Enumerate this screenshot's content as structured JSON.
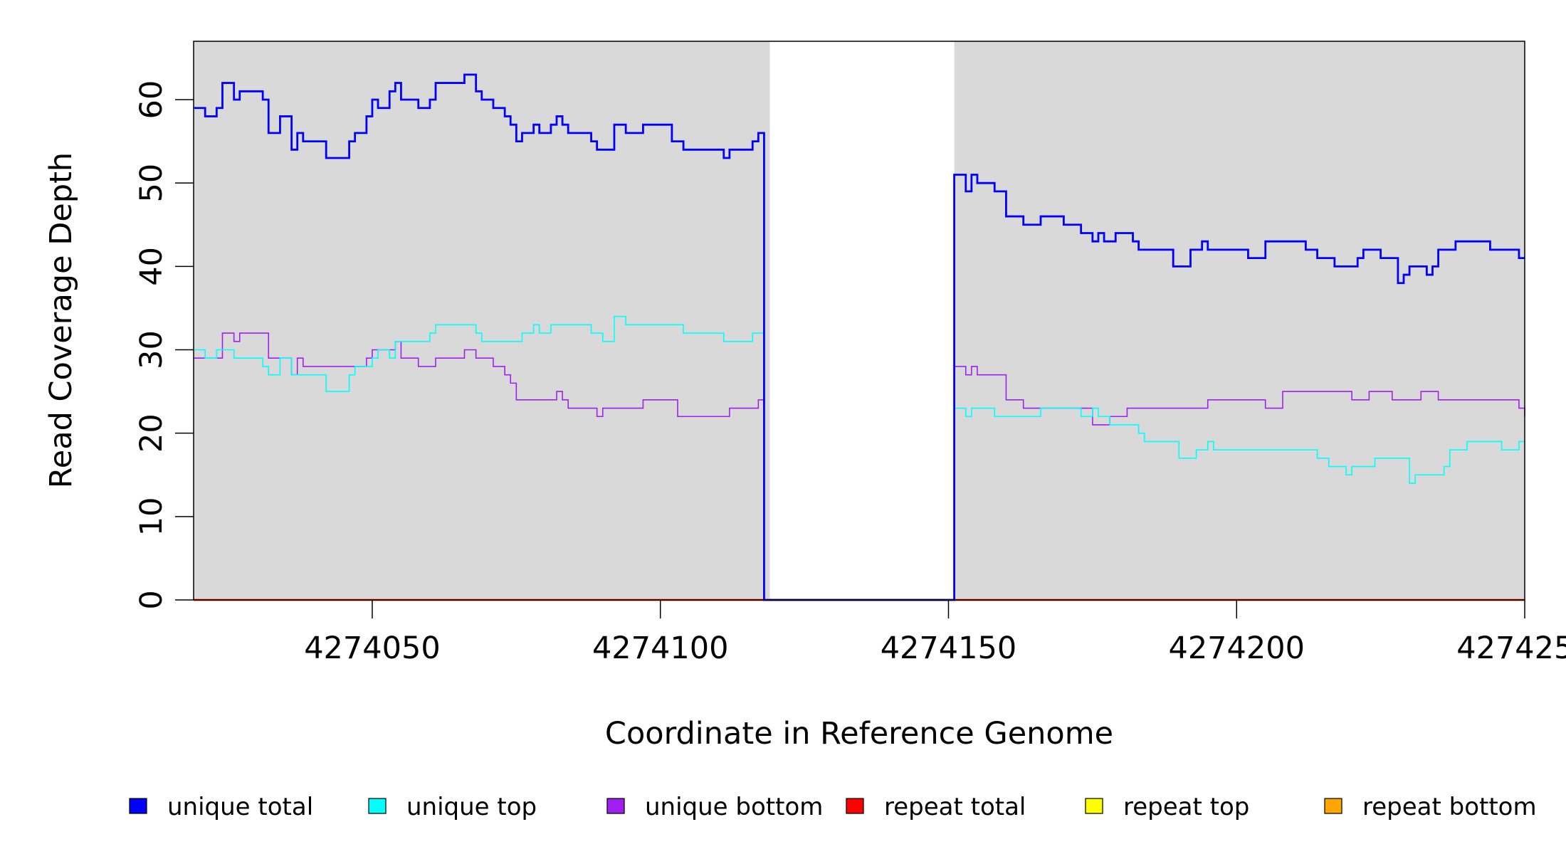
{
  "chart_data": {
    "type": "line",
    "xlabel": "Coordinate in Reference Genome",
    "ylabel": "Read Coverage Depth",
    "xlim": [
      4274019,
      4274250
    ],
    "ylim": [
      0,
      67
    ],
    "x_ticks": [
      4274050,
      4274100,
      4274150,
      4274200,
      4274250
    ],
    "x_tick_labels": [
      "4274050",
      "4274100",
      "4274150",
      "4274200",
      "4274250"
    ],
    "y_ticks": [
      0,
      10,
      20,
      30,
      40,
      50,
      60
    ],
    "y_tick_labels": [
      "0",
      "10",
      "20",
      "30",
      "40",
      "50",
      "60"
    ],
    "shaded_regions": [
      [
        4274019,
        4274119
      ],
      [
        4274151,
        4274250
      ]
    ],
    "shade_color": "#d9d9d9",
    "legend": {
      "position": "bottom",
      "entries": [
        {
          "label": "unique total",
          "color": "#0000ff"
        },
        {
          "label": "unique top",
          "color": "#00ffff"
        },
        {
          "label": "unique bottom",
          "color": "#a020f0"
        },
        {
          "label": "repeat total",
          "color": "#ff0000"
        },
        {
          "label": "repeat top",
          "color": "#ffff00"
        },
        {
          "label": "repeat bottom",
          "color": "#ffa500"
        }
      ]
    },
    "series": [
      {
        "name": "unique total",
        "color": "#0000ff",
        "x_start": 4274019,
        "step": 1,
        "values": [
          59,
          59,
          58,
          58,
          59,
          62,
          62,
          60,
          61,
          61,
          61,
          61,
          60,
          56,
          56,
          58,
          58,
          54,
          56,
          55,
          55,
          55,
          55,
          53,
          53,
          53,
          53,
          55,
          56,
          56,
          58,
          60,
          59,
          59,
          61,
          62,
          60,
          60,
          60,
          59,
          59,
          60,
          62,
          62,
          62,
          62,
          62,
          63,
          63,
          61,
          60,
          60,
          59,
          59,
          58,
          57,
          55,
          56,
          56,
          57,
          56,
          56,
          57,
          58,
          57,
          56,
          56,
          56,
          56,
          55,
          54,
          54,
          54,
          57,
          57,
          56,
          56,
          56,
          57,
          57,
          57,
          57,
          57,
          55,
          55,
          54,
          54,
          54,
          54,
          54,
          54,
          54,
          53,
          54,
          54,
          54,
          54,
          55,
          56,
          0,
          0,
          0,
          0,
          0,
          0,
          0,
          0,
          0,
          0,
          0,
          0,
          0,
          0,
          0,
          0,
          0,
          0,
          0,
          0,
          0,
          0,
          0,
          0,
          0,
          0,
          0,
          0,
          0,
          0,
          0,
          0,
          0,
          51,
          51,
          49,
          51,
          50,
          50,
          50,
          49,
          49,
          46,
          46,
          46,
          45,
          45,
          45,
          46,
          46,
          46,
          46,
          45,
          45,
          45,
          44,
          44,
          43,
          44,
          43,
          43,
          44,
          44,
          44,
          43,
          42,
          42,
          42,
          42,
          42,
          42,
          40,
          40,
          40,
          42,
          42,
          43,
          42,
          42,
          42,
          42,
          42,
          42,
          42,
          41,
          41,
          41,
          43,
          43,
          43,
          43,
          43,
          43,
          43,
          42,
          42,
          41,
          41,
          41,
          40,
          40,
          40,
          40,
          41,
          42,
          42,
          42,
          41,
          41,
          41,
          38,
          39,
          40,
          40,
          40,
          39,
          40,
          42,
          42,
          42,
          43,
          43,
          43,
          43,
          43,
          43,
          42,
          42,
          42,
          42,
          42,
          41
        ]
      },
      {
        "name": "unique top",
        "color": "#00ffff",
        "x_start": 4274019,
        "step": 1,
        "values": [
          30,
          30,
          29,
          29,
          30,
          30,
          30,
          29,
          29,
          29,
          29,
          29,
          28,
          27,
          27,
          29,
          29,
          27,
          27,
          27,
          27,
          27,
          27,
          25,
          25,
          25,
          25,
          27,
          28,
          28,
          28,
          29,
          30,
          30,
          29,
          31,
          31,
          31,
          31,
          31,
          31,
          32,
          33,
          33,
          33,
          33,
          33,
          33,
          33,
          32,
          31,
          31,
          31,
          31,
          31,
          31,
          31,
          32,
          32,
          33,
          32,
          32,
          33,
          33,
          33,
          33,
          33,
          33,
          33,
          32,
          32,
          31,
          31,
          34,
          34,
          33,
          33,
          33,
          33,
          33,
          33,
          33,
          33,
          33,
          33,
          32,
          32,
          32,
          32,
          32,
          32,
          32,
          31,
          31,
          31,
          31,
          31,
          32,
          32,
          0,
          0,
          0,
          0,
          0,
          0,
          0,
          0,
          0,
          0,
          0,
          0,
          0,
          0,
          0,
          0,
          0,
          0,
          0,
          0,
          0,
          0,
          0,
          0,
          0,
          0,
          0,
          0,
          0,
          0,
          0,
          0,
          0,
          23,
          23,
          22,
          23,
          23,
          23,
          23,
          22,
          22,
          22,
          22,
          22,
          22,
          22,
          22,
          23,
          23,
          23,
          23,
          23,
          23,
          23,
          22,
          22,
          23,
          22,
          22,
          21,
          21,
          21,
          21,
          21,
          20,
          19,
          19,
          19,
          19,
          19,
          19,
          17,
          17,
          17,
          18,
          18,
          19,
          18,
          18,
          18,
          18,
          18,
          18,
          18,
          18,
          18,
          18,
          18,
          18,
          18,
          18,
          18,
          18,
          18,
          18,
          17,
          17,
          16,
          16,
          16,
          15,
          16,
          16,
          16,
          16,
          17,
          17,
          17,
          17,
          17,
          17,
          14,
          15,
          15,
          15,
          15,
          15,
          16,
          18,
          18,
          18,
          19,
          19,
          19,
          19,
          19,
          19,
          18,
          18,
          18,
          19,
          19,
          19
        ]
      },
      {
        "name": "unique bottom",
        "color": "#a020f0",
        "x_start": 4274019,
        "step": 1,
        "values": [
          29,
          29,
          29,
          29,
          29,
          32,
          32,
          31,
          32,
          32,
          32,
          32,
          32,
          29,
          29,
          29,
          29,
          27,
          29,
          28,
          28,
          28,
          28,
          28,
          28,
          28,
          28,
          28,
          28,
          28,
          29,
          30,
          30,
          30,
          30,
          31,
          29,
          29,
          29,
          28,
          28,
          28,
          29,
          29,
          29,
          29,
          29,
          30,
          30,
          29,
          29,
          29,
          28,
          28,
          27,
          26,
          24,
          24,
          24,
          24,
          24,
          24,
          24,
          25,
          24,
          23,
          23,
          23,
          23,
          23,
          22,
          23,
          23,
          23,
          23,
          23,
          23,
          23,
          24,
          24,
          24,
          24,
          24,
          24,
          22,
          22,
          22,
          22,
          22,
          22,
          22,
          22,
          22,
          23,
          23,
          23,
          23,
          23,
          24,
          0,
          0,
          0,
          0,
          0,
          0,
          0,
          0,
          0,
          0,
          0,
          0,
          0,
          0,
          0,
          0,
          0,
          0,
          0,
          0,
          0,
          0,
          0,
          0,
          0,
          0,
          0,
          0,
          0,
          0,
          0,
          0,
          0,
          28,
          28,
          27,
          28,
          27,
          27,
          27,
          27,
          27,
          24,
          24,
          24,
          23,
          23,
          23,
          23,
          23,
          23,
          23,
          23,
          23,
          23,
          23,
          23,
          21,
          21,
          21,
          22,
          22,
          22,
          23,
          23,
          23,
          23,
          23,
          23,
          23,
          23,
          23,
          23,
          23,
          23,
          23,
          23,
          24,
          24,
          24,
          24,
          24,
          24,
          24,
          24,
          24,
          24,
          23,
          23,
          23,
          25,
          25,
          25,
          25,
          25,
          25,
          25,
          25,
          25,
          25,
          25,
          25,
          24,
          24,
          24,
          25,
          25,
          25,
          25,
          24,
          24,
          24,
          24,
          24,
          25,
          25,
          25,
          24,
          24,
          24,
          24,
          24,
          24,
          24,
          24,
          24,
          24,
          24,
          24,
          24,
          24,
          23,
          23,
          22
        ]
      },
      {
        "name": "repeat total",
        "color": "#ff0000",
        "x_start": 4274019,
        "step": 1,
        "constant": 0
      },
      {
        "name": "repeat top",
        "color": "#ffff00",
        "x_start": 4274019,
        "step": 1,
        "constant": 0
      },
      {
        "name": "repeat bottom",
        "color": "#ffa500",
        "x_start": 4274019,
        "step": 1,
        "constant": 0
      }
    ]
  }
}
